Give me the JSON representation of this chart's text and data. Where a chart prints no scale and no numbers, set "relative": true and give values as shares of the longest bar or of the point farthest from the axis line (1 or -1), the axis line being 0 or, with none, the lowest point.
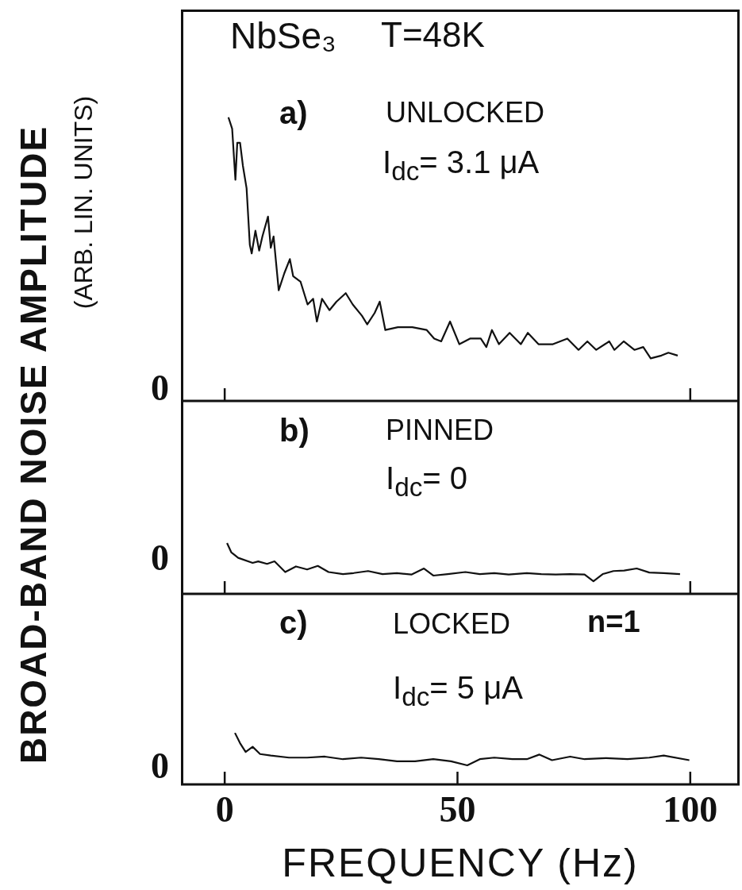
{
  "chart_data": [
    {
      "type": "line",
      "relative": true,
      "title": "NbSe₃",
      "subtitle": "T=48K",
      "ylabel": "BROAD-BAND NOISE AMPLITUDE",
      "annotations": [
        "a)",
        "UNLOCKED",
        "I$_{dc}$= 3.1 μA",
        "0",
        "(ARB. LIN. UNITS)"
      ],
      "xlim": [
        -9.4,
        110.6
      ],
      "xticks": [
        0,
        100
      ],
      "tick_labels": false,
      "grid": false,
      "legend": false,
      "x": [
        0.8,
        1.6,
        2.3,
        2.7,
        3.3,
        3.9,
        4.7,
        5.4,
        5.8,
        6.6,
        7.4,
        8.1,
        9.3,
        9.9,
        10.5,
        11.6,
        12.8,
        14.0,
        14.7,
        16.3,
        17.8,
        19.0,
        19.8,
        20.9,
        22.5,
        24.0,
        26.0,
        27.5,
        29.5,
        30.6,
        32.2,
        33.3,
        34.5,
        37.2,
        40.3,
        43.4,
        45.0,
        46.5,
        48.4,
        50.4,
        52.7,
        55.0,
        56.2,
        57.4,
        58.9,
        61.2,
        63.6,
        65.1,
        67.4,
        70.5,
        73.6,
        76.0,
        77.9,
        79.8,
        82.6,
        83.7,
        85.7,
        88.0,
        89.9,
        91.5,
        93.8,
        95.3,
        97.3
      ],
      "series": [
        {
          "color": "#111111",
          "values": [
            1.0,
            0.96,
            0.78,
            0.91,
            0.91,
            0.83,
            0.75,
            0.55,
            0.52,
            0.6,
            0.53,
            0.58,
            0.65,
            0.54,
            0.58,
            0.39,
            0.45,
            0.5,
            0.44,
            0.42,
            0.34,
            0.36,
            0.28,
            0.36,
            0.32,
            0.35,
            0.38,
            0.34,
            0.3,
            0.27,
            0.31,
            0.35,
            0.25,
            0.26,
            0.26,
            0.25,
            0.22,
            0.21,
            0.28,
            0.2,
            0.22,
            0.22,
            0.19,
            0.25,
            0.2,
            0.24,
            0.2,
            0.24,
            0.2,
            0.2,
            0.22,
            0.18,
            0.21,
            0.18,
            0.21,
            0.18,
            0.21,
            0.18,
            0.19,
            0.15,
            0.16,
            0.17,
            0.16
          ]
        }
      ]
    },
    {
      "type": "line",
      "relative": true,
      "annotations": [
        "b)",
        "PINNED",
        "I$_{dc}$= 0",
        "0"
      ],
      "xlim": [
        -9.4,
        110.6
      ],
      "xticks": [
        0,
        100
      ],
      "tick_labels": false,
      "grid": false,
      "legend": false,
      "x": [
        0.5,
        1.4,
        2.9,
        6.0,
        7.2,
        9.1,
        10.7,
        13.0,
        15.3,
        17.7,
        20.0,
        22.3,
        25.4,
        27.7,
        30.8,
        33.9,
        37.0,
        40.1,
        42.8,
        44.8,
        47.9,
        51.7,
        54.8,
        57.9,
        61.0,
        64.9,
        68.0,
        71.1,
        74.2,
        77.3,
        79.2,
        81.2,
        83.5,
        85.8,
        88.5,
        91.2,
        94.3,
        97.8
      ],
      "series": [
        {
          "color": "#111111",
          "values": [
            1.0,
            0.82,
            0.71,
            0.61,
            0.64,
            0.59,
            0.64,
            0.43,
            0.54,
            0.48,
            0.55,
            0.43,
            0.39,
            0.41,
            0.45,
            0.39,
            0.41,
            0.38,
            0.5,
            0.36,
            0.39,
            0.43,
            0.39,
            0.41,
            0.38,
            0.41,
            0.39,
            0.38,
            0.39,
            0.38,
            0.25,
            0.39,
            0.45,
            0.46,
            0.5,
            0.42,
            0.41,
            0.39
          ]
        }
      ]
    },
    {
      "type": "line",
      "relative": true,
      "xlabel": "FREQUENCY (Hz)",
      "annotations": [
        "c)",
        "LOCKED",
        "n=1",
        "I$_{dc}$= 5 μA",
        "0"
      ],
      "xlim": [
        -9.4,
        110.6
      ],
      "xticks": [
        0,
        50,
        100
      ],
      "tick_labels": "x",
      "grid": false,
      "legend": false,
      "x": [
        2.2,
        3.3,
        4.5,
        6.0,
        7.6,
        9.9,
        13.8,
        17.7,
        21.5,
        25.4,
        29.3,
        33.1,
        37.0,
        40.9,
        44.8,
        48.6,
        52.1,
        54.8,
        57.9,
        61.8,
        64.9,
        67.6,
        70.3,
        74.2,
        77.3,
        81.9,
        86.5,
        91.2,
        94.3,
        99.8
      ],
      "series": [
        {
          "color": "#111111",
          "values": [
            1.0,
            0.8,
            0.63,
            0.73,
            0.59,
            0.56,
            0.52,
            0.52,
            0.54,
            0.49,
            0.52,
            0.49,
            0.45,
            0.45,
            0.49,
            0.45,
            0.37,
            0.49,
            0.52,
            0.49,
            0.49,
            0.58,
            0.47,
            0.54,
            0.49,
            0.51,
            0.49,
            0.52,
            0.56,
            0.47
          ]
        }
      ]
    }
  ]
}
